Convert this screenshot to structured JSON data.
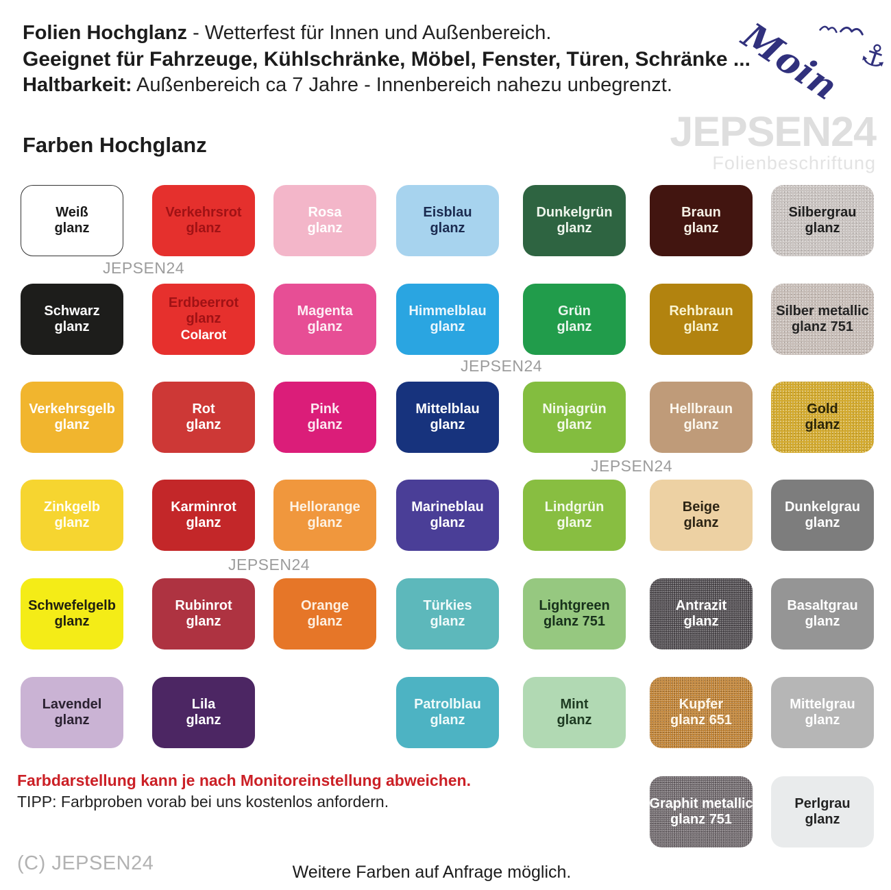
{
  "header": {
    "line1_bold": "Folien Hochglanz",
    "line1_rest": " - Wetterfest für Innen und Außenbereich.",
    "line2": "Geeignet für Fahrzeuge, Kühlschränke, Möbel, Fenster, Türen, Schränke ...",
    "line3_bold": "Haltbarkeit:",
    "line3_rest": " Außenbereich ca 7 Jahre - Innenbereich nahezu unbegrenzt.",
    "moin_text": "Moin",
    "moin_color": "#31317d"
  },
  "watermark": {
    "brand": "JEPSEN24",
    "subtitle": "Folienbeschriftung",
    "brand_color": "#dedede",
    "small_color": "#9c9c9c"
  },
  "section_title": "Farben Hochglanz",
  "footer": {
    "warning": "Farbdarstellung kann je nach Monitoreinstellung abweichen.",
    "warning_color": "#cb2026",
    "tip": "TIPP: Farbproben vorab bei uns kostenlos anfordern.",
    "copyright": "(C) JEPSEN24",
    "more": "Weitere Farben auf Anfrage möglich."
  },
  "swatches": {
    "items": [
      {
        "id": "weiss",
        "line1": "Weiß",
        "line2": "glanz",
        "row": 0,
        "col": 0,
        "bg": "#ffffff",
        "fg": "#1a1a1a",
        "border": "#333333"
      },
      {
        "id": "verkehrsrot",
        "line1": "Verkehrsrot",
        "line2": "glanz",
        "row": 0,
        "col": 1,
        "bg": "#e5302d",
        "fg": "#a01215"
      },
      {
        "id": "rosa",
        "line1": "Rosa",
        "line2": "glanz",
        "row": 0,
        "col": 2,
        "bg": "#f3b6c9",
        "fg": "#ffffff"
      },
      {
        "id": "eisblau",
        "line1": "Eisblau",
        "line2": "glanz",
        "row": 0,
        "col": 3,
        "bg": "#a7d3ee",
        "fg": "#1b2b50"
      },
      {
        "id": "dunkelgruen",
        "line1": "Dunkelgrün",
        "line2": "glanz",
        "row": 0,
        "col": 4,
        "bg": "#2e6441",
        "fg": "#eef5ec"
      },
      {
        "id": "braun",
        "line1": "Braun",
        "line2": "glanz",
        "row": 0,
        "col": 5,
        "bg": "#421510",
        "fg": "#f6f1e6"
      },
      {
        "id": "silbergrau",
        "line1": "Silbergrau",
        "line2": "glanz",
        "row": 0,
        "col": 6,
        "bg": "#c9c3c0",
        "fg": "#1f1f1f",
        "tex": "light"
      },
      {
        "id": "schwarz",
        "line1": "Schwarz",
        "line2": "glanz",
        "row": 1,
        "col": 0,
        "bg": "#1d1d1b",
        "fg": "#ffffff"
      },
      {
        "id": "erdbeerrot",
        "line1": "Erdbeerrot",
        "line2": "glanz",
        "line3": "Colarot",
        "fg3": "#ffffff",
        "row": 1,
        "col": 1,
        "bg": "#e6302d",
        "fg": "#a01215"
      },
      {
        "id": "magenta",
        "line1": "Magenta",
        "line2": "glanz",
        "row": 1,
        "col": 2,
        "bg": "#e74e95",
        "fg": "#fdeef5"
      },
      {
        "id": "himmelblau",
        "line1": "Himmelblau",
        "line2": "glanz",
        "row": 1,
        "col": 3,
        "bg": "#2aa5e1",
        "fg": "#eaf6fd"
      },
      {
        "id": "gruen",
        "line1": "Grün",
        "line2": "glanz",
        "row": 1,
        "col": 4,
        "bg": "#219c4b",
        "fg": "#eaf6ee"
      },
      {
        "id": "rehbraun",
        "line1": "Rehbraun",
        "line2": "glanz",
        "row": 1,
        "col": 5,
        "bg": "#b2830f",
        "fg": "#f9f3d0"
      },
      {
        "id": "silber-metallic",
        "line1": "Silber metallic",
        "line2": "glanz 751",
        "row": 1,
        "col": 6,
        "bg": "#c7bdb7",
        "fg": "#242424",
        "tex": "light"
      },
      {
        "id": "verkehrsgelb",
        "line1": "Verkehrsgelb",
        "line2": "glanz",
        "row": 2,
        "col": 0,
        "bg": "#f1b52e",
        "fg": "#ffffff"
      },
      {
        "id": "rot",
        "line1": "Rot",
        "line2": "glanz",
        "row": 2,
        "col": 1,
        "bg": "#cd3836",
        "fg": "#ffffff"
      },
      {
        "id": "pink",
        "line1": "Pink",
        "line2": "glanz",
        "row": 2,
        "col": 2,
        "bg": "#db1d79",
        "fg": "#fce8f1"
      },
      {
        "id": "mittelblau",
        "line1": "Mittelblau",
        "line2": "glanz",
        "row": 2,
        "col": 3,
        "bg": "#17337d",
        "fg": "#ffffff"
      },
      {
        "id": "ninjagruen",
        "line1": "Ninjagrün",
        "line2": "glanz",
        "row": 2,
        "col": 4,
        "bg": "#83bd3f",
        "fg": "#f3f9ea"
      },
      {
        "id": "hellbraun",
        "line1": "Hellbraun",
        "line2": "glanz",
        "row": 2,
        "col": 5,
        "bg": "#bf9b79",
        "fg": "#fbf7ee"
      },
      {
        "id": "gold",
        "line1": "Gold",
        "line2": "glanz",
        "row": 2,
        "col": 6,
        "bg": "#d2a92e",
        "fg": "#2a2408",
        "tex": "light"
      },
      {
        "id": "zinkgelb",
        "line1": "Zinkgelb",
        "line2": "glanz",
        "row": 3,
        "col": 0,
        "bg": "#f6d530",
        "fg": "#fffef2"
      },
      {
        "id": "karminrot",
        "line1": "Karminrot",
        "line2": "glanz",
        "row": 3,
        "col": 1,
        "bg": "#c32729",
        "fg": "#ffffff"
      },
      {
        "id": "hellorange",
        "line1": "Hellorange",
        "line2": "glanz",
        "row": 3,
        "col": 2,
        "bg": "#f0973d",
        "fg": "#fdf2e4"
      },
      {
        "id": "marineblau",
        "line1": "Marineblau",
        "line2": "glanz",
        "row": 3,
        "col": 3,
        "bg": "#4a3e97",
        "fg": "#ffffff"
      },
      {
        "id": "lindgruen",
        "line1": "Lindgrün",
        "line2": "glanz",
        "row": 3,
        "col": 4,
        "bg": "#88be41",
        "fg": "#f3f9ea"
      },
      {
        "id": "beige",
        "line1": "Beige",
        "line2": "glanz",
        "row": 3,
        "col": 5,
        "bg": "#edd1a3",
        "fg": "#2c2414"
      },
      {
        "id": "dunkelgrau",
        "line1": "Dunkelgrau",
        "line2": "glanz",
        "row": 3,
        "col": 6,
        "bg": "#7d7d7d",
        "fg": "#ffffff"
      },
      {
        "id": "schwefelgelb",
        "line1": "Schwefelgelb",
        "line2": "glanz",
        "row": 4,
        "col": 0,
        "bg": "#f4ec17",
        "fg": "#1f1f10"
      },
      {
        "id": "rubinrot",
        "line1": "Rubinrot",
        "line2": "glanz",
        "row": 4,
        "col": 1,
        "bg": "#ae3341",
        "fg": "#ffffff"
      },
      {
        "id": "orange",
        "line1": "Orange",
        "line2": "glanz",
        "row": 4,
        "col": 2,
        "bg": "#e67628",
        "fg": "#fdf0e2"
      },
      {
        "id": "tuerkies",
        "line1": "Türkies",
        "line2": "glanz",
        "row": 4,
        "col": 3,
        "bg": "#5db8bb",
        "fg": "#effafa"
      },
      {
        "id": "lightgreen",
        "line1": "Lightgreen",
        "line2": "glanz 751",
        "row": 4,
        "col": 4,
        "bg": "#96c880",
        "fg": "#17301b"
      },
      {
        "id": "antrazit",
        "line1": "Antrazit",
        "line2": "glanz",
        "row": 4,
        "col": 5,
        "bg": "#4d484c",
        "fg": "#ffffff",
        "tex": "dark"
      },
      {
        "id": "basaltgrau",
        "line1": "Basaltgrau",
        "line2": "glanz",
        "row": 4,
        "col": 6,
        "bg": "#959595",
        "fg": "#ffffff"
      },
      {
        "id": "lavendel",
        "line1": "Lavendel",
        "line2": "glanz",
        "row": 5,
        "col": 0,
        "bg": "#cab3d4",
        "fg": "#2a2130"
      },
      {
        "id": "lila",
        "line1": "Lila",
        "line2": "glanz",
        "row": 5,
        "col": 1,
        "bg": "#4c2663",
        "fg": "#ffffff"
      },
      {
        "id": "patrolblau",
        "line1": "Patrolblau",
        "line2": "glanz",
        "row": 5,
        "col": 3,
        "bg": "#4db3c3",
        "fg": "#effafa"
      },
      {
        "id": "mint",
        "line1": "Mint",
        "line2": "glanz",
        "row": 5,
        "col": 4,
        "bg": "#b1d9b3",
        "fg": "#1d3a21"
      },
      {
        "id": "kupfer",
        "line1": "Kupfer",
        "line2": "glanz 651",
        "row": 5,
        "col": 5,
        "bg": "#c08030",
        "fg": "#fdf6ea",
        "tex": "dark"
      },
      {
        "id": "mittelgrau",
        "line1": "Mittelgrau",
        "line2": "glanz",
        "row": 5,
        "col": 6,
        "bg": "#b6b6b6",
        "fg": "#ffffff"
      },
      {
        "id": "graphit-metallic",
        "line1": "Graphit metallic",
        "line2": "glanz 751",
        "row": 6,
        "col": 5,
        "bg": "#6f686c",
        "fg": "#ffffff",
        "tex": "dark"
      },
      {
        "id": "perlgrau",
        "line1": "Perlgrau",
        "line2": "glanz",
        "row": 6,
        "col": 6,
        "bg": "#e9ebec",
        "fg": "#232323"
      }
    ]
  }
}
